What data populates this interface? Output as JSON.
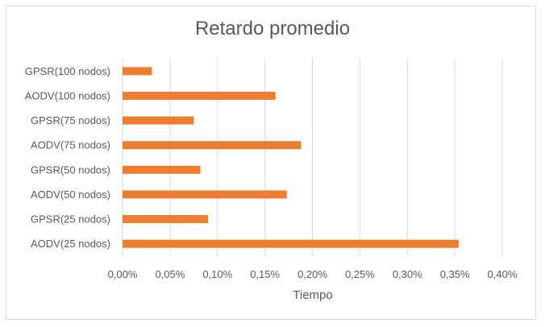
{
  "chart_data": {
    "type": "bar",
    "orientation": "horizontal",
    "title": "Retardo promedio",
    "xlabel": "Tiempo",
    "ylabel": "",
    "categories": [
      "GPSR(100 nodos)",
      "AODV(100 nodos)",
      "GPSR(75 nodos)",
      "AODV(75 nodos)",
      "GPSR(50 nodos)",
      "AODV(50 nodos)",
      "GPSR(25 nodos)",
      "AODV(25 nodos)"
    ],
    "values": [
      0.031,
      0.161,
      0.075,
      0.188,
      0.082,
      0.173,
      0.09,
      0.354
    ],
    "value_unit": "%",
    "xlim": [
      0,
      0.4
    ],
    "xticks": [
      0,
      0.05,
      0.1,
      0.15,
      0.2,
      0.25,
      0.3,
      0.35,
      0.4
    ],
    "xtick_labels": [
      "0,00%",
      "0,05%",
      "0,10%",
      "0,15%",
      "0,20%",
      "0,25%",
      "0,30%",
      "0,35%",
      "0,40%"
    ],
    "grid": "vertical",
    "legend": "none",
    "bar_color": "#ED7D31",
    "grid_color": "#d9d9d9",
    "text_color": "#595959"
  }
}
